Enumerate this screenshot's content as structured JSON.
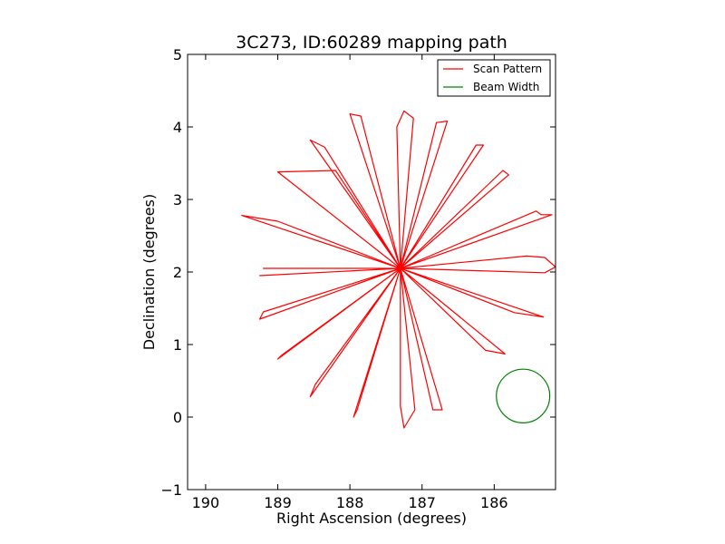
{
  "chart_data": {
    "type": "line",
    "title": "3C273, ID:60289 mapping path",
    "xlabel": "Right Ascension (degrees)",
    "ylabel": "Declination (degrees)",
    "xlim": [
      190.25,
      185.15
    ],
    "ylim": [
      -1,
      5
    ],
    "xticks": [
      190,
      189,
      188,
      187,
      186
    ],
    "yticks": [
      -1,
      0,
      1,
      2,
      3,
      4,
      5
    ],
    "xtick_labels": [
      "190",
      "189",
      "188",
      "187",
      "186"
    ],
    "ytick_labels": [
      "−1",
      "0",
      "1",
      "2",
      "3",
      "4",
      "5"
    ],
    "grid": false,
    "legend_position": "top-right",
    "colors": {
      "scan": "#ff0000",
      "beam": "#008000"
    },
    "series": [
      {
        "name": "Scan Pattern",
        "points": [
          [
            187.3,
            2.05
          ],
          [
            189.5,
            2.78
          ],
          [
            189.0,
            2.7
          ],
          [
            187.3,
            2.05
          ],
          [
            188.2,
            3.4
          ],
          [
            189.0,
            3.38
          ],
          [
            187.3,
            2.05
          ],
          [
            188.55,
            3.82
          ],
          [
            188.35,
            3.72
          ],
          [
            187.3,
            2.05
          ],
          [
            188.0,
            4.18
          ],
          [
            187.85,
            4.15
          ],
          [
            187.3,
            2.05
          ],
          [
            187.35,
            4.0
          ],
          [
            187.25,
            4.22
          ],
          [
            187.12,
            4.12
          ],
          [
            187.3,
            2.05
          ],
          [
            186.8,
            4.06
          ],
          [
            186.65,
            4.08
          ],
          [
            187.3,
            2.05
          ],
          [
            186.25,
            3.75
          ],
          [
            186.15,
            3.75
          ],
          [
            187.3,
            2.05
          ],
          [
            185.88,
            3.4
          ],
          [
            185.8,
            3.34
          ],
          [
            187.3,
            2.05
          ],
          [
            185.42,
            2.84
          ],
          [
            185.35,
            2.79
          ],
          [
            185.2,
            2.79
          ],
          [
            187.3,
            2.05
          ],
          [
            185.55,
            2.22
          ],
          [
            185.3,
            2.2
          ],
          [
            185.15,
            2.07
          ],
          [
            185.3,
            1.99
          ],
          [
            187.3,
            2.05
          ],
          [
            185.72,
            1.44
          ],
          [
            185.32,
            1.38
          ],
          [
            187.3,
            2.05
          ],
          [
            186.12,
            0.92
          ],
          [
            185.85,
            0.87
          ],
          [
            187.3,
            2.05
          ],
          [
            186.85,
            0.1
          ],
          [
            186.72,
            0.1
          ],
          [
            187.3,
            2.05
          ],
          [
            187.3,
            0.15
          ],
          [
            187.25,
            -0.15
          ],
          [
            187.1,
            0.1
          ],
          [
            187.3,
            2.05
          ],
          [
            187.95,
            0.0
          ],
          [
            187.9,
            0.1
          ],
          [
            187.3,
            2.05
          ],
          [
            188.55,
            0.28
          ],
          [
            188.48,
            0.45
          ],
          [
            187.3,
            2.05
          ],
          [
            189.0,
            0.8
          ],
          [
            188.95,
            0.85
          ],
          [
            187.3,
            2.05
          ],
          [
            189.25,
            1.35
          ],
          [
            189.2,
            1.45
          ],
          [
            187.3,
            2.05
          ],
          [
            189.2,
            2.05
          ],
          [
            187.3,
            2.05
          ],
          [
            189.25,
            1.95
          ],
          [
            187.3,
            2.05
          ]
        ]
      },
      {
        "name": "Beam Width",
        "center": [
          185.6,
          0.29
        ],
        "radius": 0.37
      }
    ]
  }
}
